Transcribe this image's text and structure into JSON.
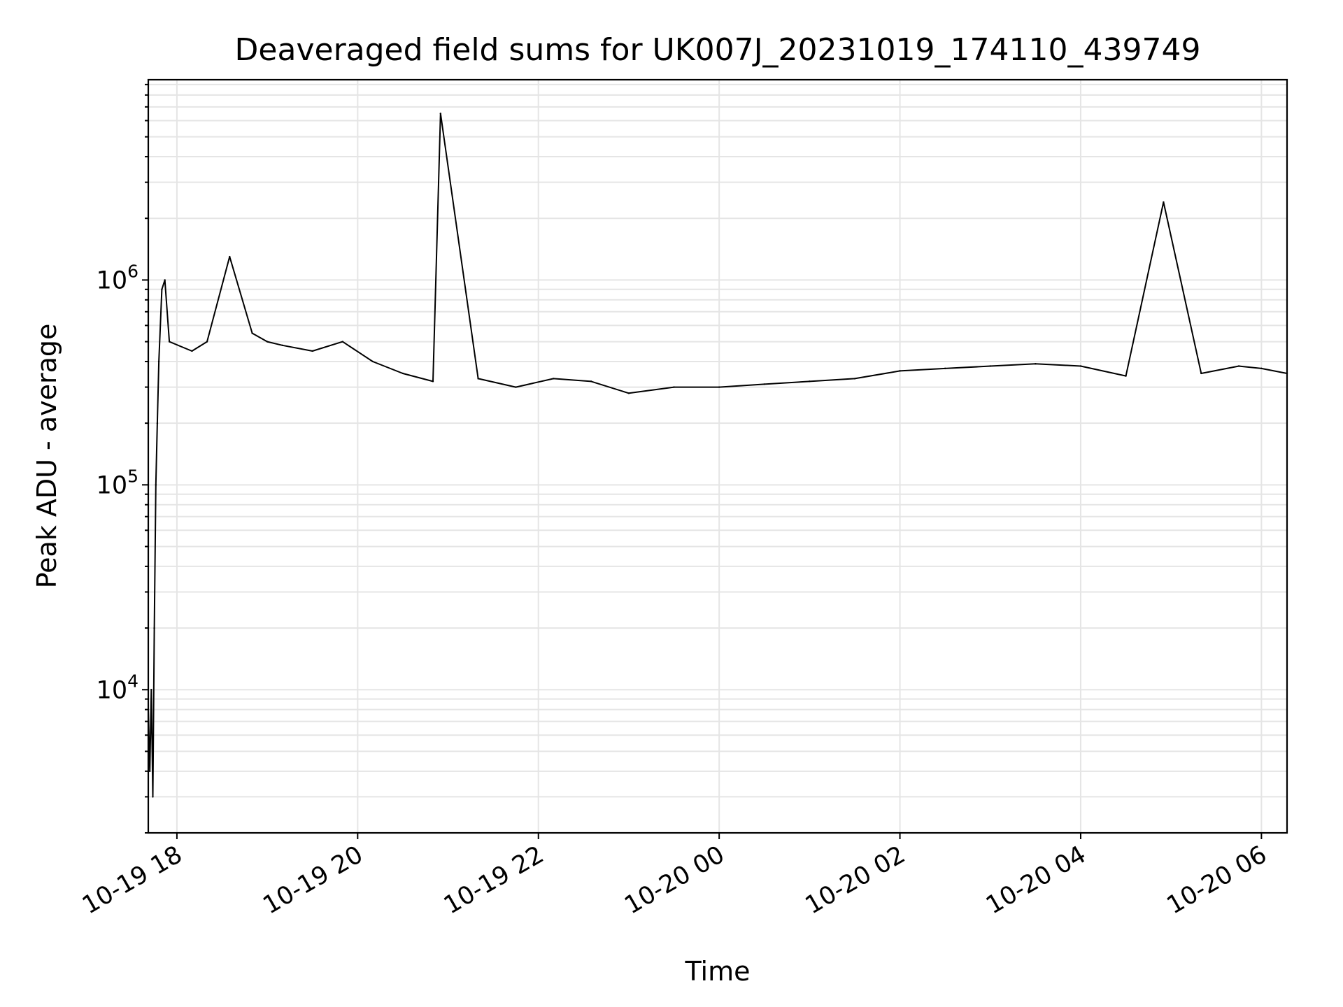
{
  "chart_data": {
    "type": "line",
    "title": "Deaveraged field sums for UK007J_20231019_174110_439749",
    "xlabel": "Time",
    "ylabel": "Peak ADU - average",
    "yscale": "log",
    "ylim": [
      2000,
      9500000
    ],
    "xlim": [
      "2023-10-19 17:41",
      "2023-10-20 06:17"
    ],
    "grid": true,
    "line_color": "#000000",
    "grid_color": "#e5e5e5",
    "x_ticks": [
      {
        "label": "10-19 18",
        "t": "2023-10-19 18:00"
      },
      {
        "label": "10-19 20",
        "t": "2023-10-19 20:00"
      },
      {
        "label": "10-19 22",
        "t": "2023-10-19 22:00"
      },
      {
        "label": "10-20 00",
        "t": "2023-10-20 00:00"
      },
      {
        "label": "10-20 02",
        "t": "2023-10-20 02:00"
      },
      {
        "label": "10-20 04",
        "t": "2023-10-20 04:00"
      },
      {
        "label": "10-20 06",
        "t": "2023-10-20 06:00"
      }
    ],
    "y_ticks": [
      {
        "base": "10",
        "exp": "4",
        "value": 10000
      },
      {
        "base": "10",
        "exp": "5",
        "value": 100000
      },
      {
        "base": "10",
        "exp": "6",
        "value": 1000000
      }
    ],
    "series": [
      {
        "x": [
          "2023-10-19 17:41",
          "2023-10-19 17:42",
          "2023-10-19 17:43",
          "2023-10-19 17:44",
          "2023-10-19 17:45",
          "2023-10-19 17:46",
          "2023-10-19 17:47",
          "2023-10-19 17:48",
          "2023-10-19 17:50",
          "2023-10-19 17:52",
          "2023-10-19 17:55",
          "2023-10-19 18:10",
          "2023-10-19 18:20",
          "2023-10-19 18:35",
          "2023-10-19 18:50",
          "2023-10-19 19:00",
          "2023-10-19 19:10",
          "2023-10-19 19:30",
          "2023-10-19 19:50",
          "2023-10-19 20:10",
          "2023-10-19 20:30",
          "2023-10-19 20:50",
          "2023-10-19 20:55",
          "2023-10-19 21:20",
          "2023-10-19 21:45",
          "2023-10-19 22:10",
          "2023-10-19 22:35",
          "2023-10-19 23:00",
          "2023-10-19 23:30",
          "2023-10-20 00:00",
          "2023-10-20 00:30",
          "2023-10-20 01:00",
          "2023-10-20 01:30",
          "2023-10-20 02:00",
          "2023-10-20 02:30",
          "2023-10-20 03:00",
          "2023-10-20 03:30",
          "2023-10-20 04:00",
          "2023-10-20 04:30",
          "2023-10-20 04:55",
          "2023-10-20 05:20",
          "2023-10-20 05:45",
          "2023-10-20 06:00",
          "2023-10-20 06:17"
        ],
        "y": [
          8000,
          4000,
          10000,
          3000,
          20000,
          100000,
          200000,
          400000,
          900000,
          1000000,
          500000,
          450000,
          500000,
          1300000,
          550000,
          500000,
          480000,
          450000,
          500000,
          400000,
          350000,
          320000,
          6500000,
          330000,
          300000,
          330000,
          320000,
          280000,
          300000,
          300000,
          310000,
          320000,
          330000,
          360000,
          370000,
          380000,
          390000,
          380000,
          340000,
          2400000,
          350000,
          380000,
          370000,
          350000
        ]
      }
    ]
  }
}
